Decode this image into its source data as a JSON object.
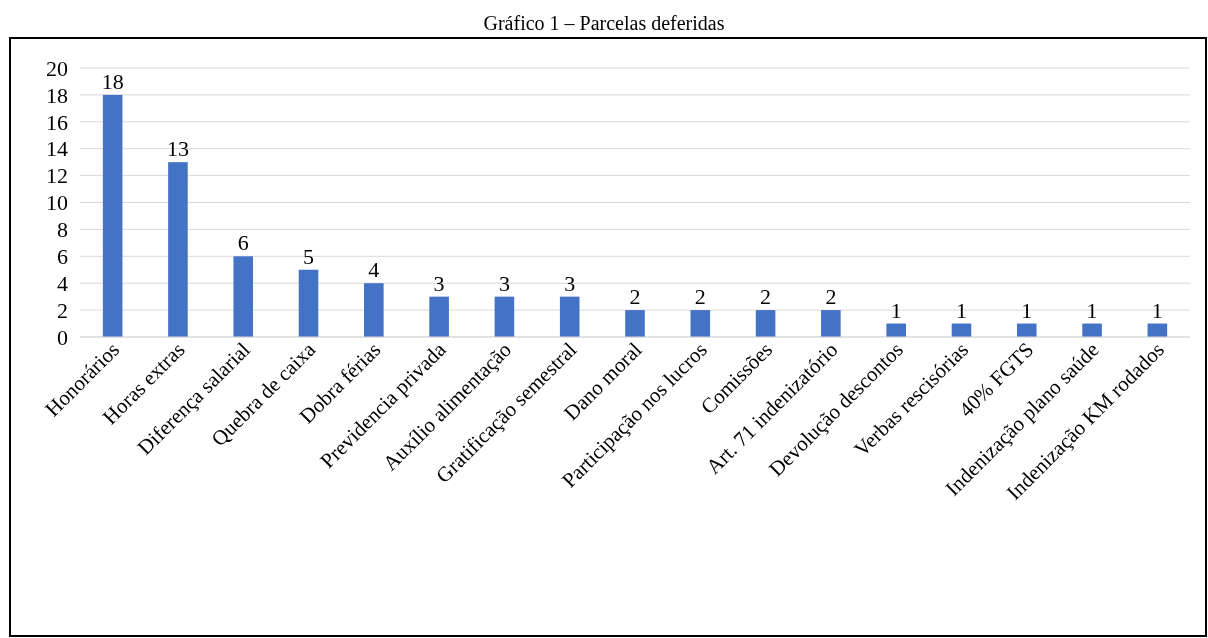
{
  "chart_data": {
    "type": "bar",
    "title": "Gráfico 1 – Parcelas deferidas",
    "categories": [
      "Honorários",
      "Horas extras",
      "Diferença salarial",
      "Quebra de caixa",
      "Dobra férias",
      "Previdencia privada",
      "Auxílio alimentação",
      "Gratificação semestral",
      "Dano moral",
      "Participação nos lucros",
      "Comissões",
      "Art. 71 indenizatório",
      "Devolução descontos",
      "Verbas rescisórias",
      "40% FGTS",
      "Indenização plano saúde",
      "Indenização KM rodados"
    ],
    "values": [
      18,
      13,
      6,
      5,
      4,
      3,
      3,
      3,
      2,
      2,
      2,
      2,
      1,
      1,
      1,
      1,
      1
    ],
    "color": "#4472c4",
    "ylim": [
      0,
      20
    ],
    "yticks": [
      0,
      2,
      4,
      6,
      8,
      10,
      12,
      14,
      16,
      18,
      20
    ],
    "grid": "y",
    "data_labels": true
  }
}
